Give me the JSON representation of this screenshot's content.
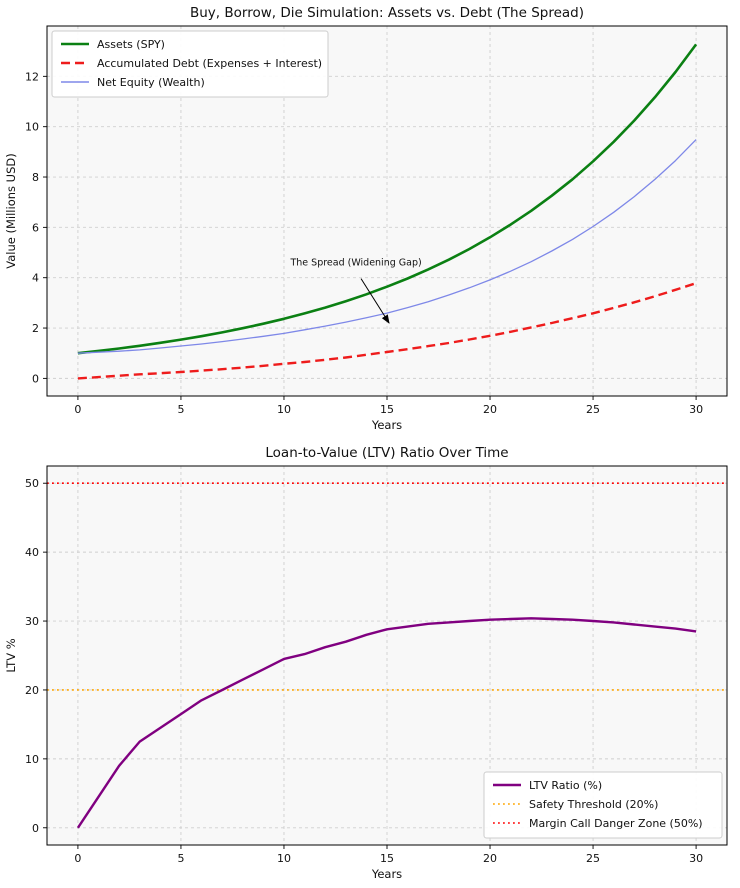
{
  "chart_data": [
    {
      "type": "line",
      "title": "Buy, Borrow, Die Simulation: Assets vs. Debt (The Spread)",
      "xlabel": "Years",
      "ylabel": "Value (Millions USD)",
      "xlim": [
        -1.5,
        31.5
      ],
      "ylim": [
        -0.7,
        14.0
      ],
      "xticks": [
        0,
        5,
        10,
        15,
        20,
        25,
        30
      ],
      "yticks": [
        0,
        2,
        4,
        6,
        8,
        10,
        12
      ],
      "grid": true,
      "legend_position": "upper-left",
      "x": [
        0,
        1,
        2,
        3,
        4,
        5,
        6,
        7,
        8,
        9,
        10,
        11,
        12,
        13,
        14,
        15,
        16,
        17,
        18,
        19,
        20,
        21,
        22,
        23,
        24,
        25,
        26,
        27,
        28,
        29,
        30
      ],
      "series": [
        {
          "name": "Assets (SPY)",
          "color": "#0b8013",
          "style": "solid",
          "width": 2.6,
          "values": [
            1.0,
            1.09,
            1.188,
            1.295,
            1.412,
            1.539,
            1.677,
            1.828,
            1.993,
            2.172,
            2.367,
            2.58,
            2.813,
            3.066,
            3.342,
            3.642,
            3.97,
            4.328,
            4.717,
            5.142,
            5.604,
            6.109,
            6.659,
            7.258,
            7.911,
            8.623,
            9.399,
            10.245,
            11.167,
            12.172,
            13.268
          ]
        },
        {
          "name": "Accumulated Debt (Expenses + Interest)",
          "color": "#ee1c1c",
          "style": "dashed",
          "width": 2.4,
          "values": [
            0,
            0.049,
            0.107,
            0.162,
            0.205,
            0.254,
            0.31,
            0.366,
            0.428,
            0.5,
            0.58,
            0.65,
            0.737,
            0.828,
            0.936,
            1.049,
            1.159,
            1.281,
            1.406,
            1.543,
            1.692,
            1.851,
            2.024,
            2.199,
            2.389,
            2.587,
            2.801,
            3.022,
            3.261,
            3.518,
            3.781
          ]
        },
        {
          "name": "Net Equity (Wealth)",
          "color": "#7e88e8",
          "style": "solid",
          "width": 1.3,
          "values": [
            1.0,
            1.041,
            1.081,
            1.133,
            1.207,
            1.285,
            1.367,
            1.462,
            1.565,
            1.672,
            1.787,
            1.93,
            2.076,
            2.238,
            2.406,
            2.593,
            2.811,
            3.047,
            3.311,
            3.599,
            3.912,
            4.258,
            4.635,
            5.059,
            5.522,
            6.036,
            6.598,
            7.223,
            7.906,
            8.654,
            9.487
          ]
        }
      ],
      "annotation": {
        "text": "The Spread (Widening Gap)",
        "xy": [
          15.1,
          2.2
        ],
        "xytext": [
          13.5,
          4.6
        ]
      }
    },
    {
      "type": "line",
      "title": "Loan-to-Value (LTV) Ratio Over Time",
      "xlabel": "Years",
      "ylabel": "LTV %",
      "xlim": [
        -1.5,
        31.5
      ],
      "ylim": [
        -2.5,
        52.5
      ],
      "xticks": [
        0,
        5,
        10,
        15,
        20,
        25,
        30
      ],
      "yticks": [
        0,
        10,
        20,
        30,
        40,
        50
      ],
      "grid": true,
      "legend_position": "lower-right",
      "x": [
        0,
        1,
        2,
        3,
        4,
        5,
        6,
        7,
        8,
        9,
        10,
        11,
        12,
        13,
        14,
        15,
        16,
        17,
        18,
        19,
        20,
        21,
        22,
        23,
        24,
        25,
        26,
        27,
        28,
        29,
        30
      ],
      "series": [
        {
          "name": "LTV Ratio (%)",
          "color": "#800080",
          "style": "solid",
          "width": 2.4,
          "values": [
            0,
            4.5,
            9.0,
            12.5,
            14.5,
            16.5,
            18.5,
            20.0,
            21.5,
            23.0,
            24.5,
            25.2,
            26.2,
            27.0,
            28.0,
            28.8,
            29.2,
            29.6,
            29.8,
            30.0,
            30.2,
            30.3,
            30.4,
            30.3,
            30.2,
            30.0,
            29.8,
            29.5,
            29.2,
            28.9,
            28.5
          ]
        }
      ],
      "hlines": [
        {
          "name": "Safety Threshold (20%)",
          "y": 20,
          "color": "#ffa500",
          "style": "dotted",
          "width": 1.6
        },
        {
          "name": "Margin Call Danger Zone (50%)",
          "y": 50,
          "color": "#ff0000",
          "style": "dotted",
          "width": 1.6
        }
      ]
    }
  ],
  "style": {
    "plot_background": "#f8f8f8",
    "grid_color": "#cfcfcf",
    "spine_color": "#000000"
  }
}
